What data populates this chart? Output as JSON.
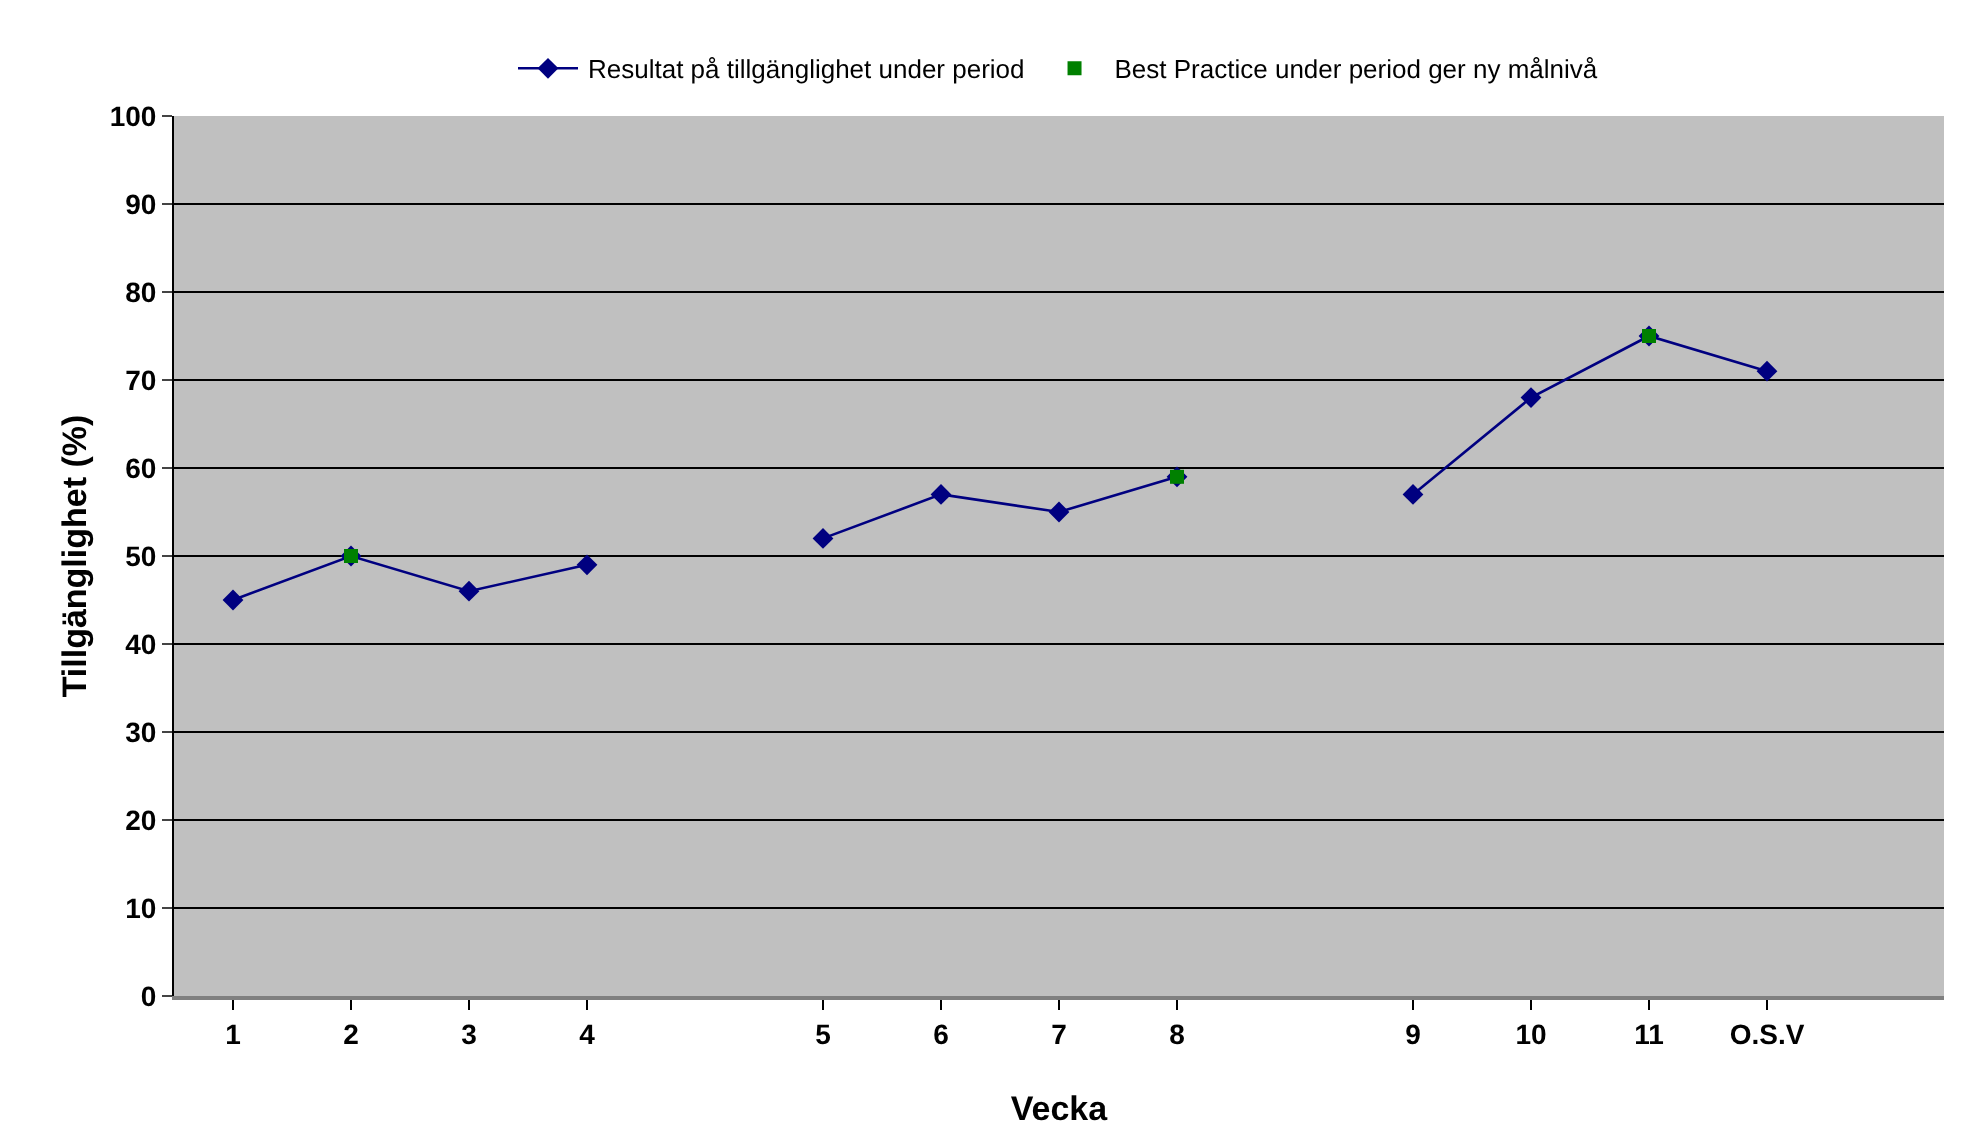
{
  "chart_data": {
    "type": "line",
    "xlabel": "Vecka",
    "ylabel": "Tillgänglighet (%)",
    "categories": [
      "1",
      "2",
      "3",
      "4",
      null,
      "5",
      "6",
      "7",
      "8",
      null,
      "9",
      "10",
      "11",
      "O.S.V",
      null
    ],
    "series": [
      {
        "name": "Resultat på tillgänglighet under period",
        "color": "#000080",
        "marker": "diamond",
        "values": [
          45,
          50,
          46,
          49,
          null,
          52,
          57,
          55,
          59,
          null,
          57,
          68,
          75,
          71,
          null
        ]
      },
      {
        "name": "Best Practice under period ger ny målnivå",
        "type": "scatter",
        "color": "#008000",
        "marker": "square",
        "values": [
          null,
          50,
          null,
          null,
          null,
          null,
          null,
          null,
          59,
          null,
          null,
          null,
          75,
          null,
          null
        ]
      }
    ],
    "ylim": [
      0,
      100
    ],
    "yticks": [
      0,
      10,
      20,
      30,
      40,
      50,
      60,
      70,
      80,
      90,
      100
    ],
    "grid": "y",
    "legend": "top"
  }
}
